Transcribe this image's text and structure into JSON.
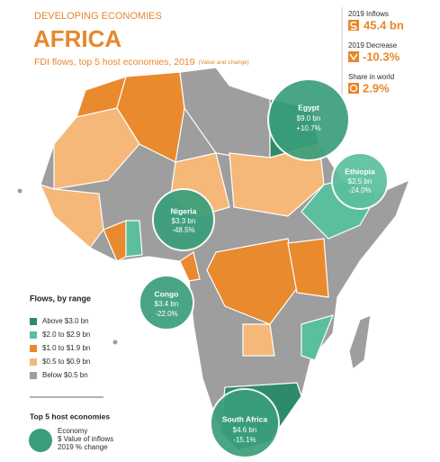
{
  "header": {
    "kicker": "DEVELOPING ECONOMIES",
    "title": "AFRICA",
    "subtitle": "FDI flows, top 5 host economies, 2019",
    "subtitle_note": "(Value and change)"
  },
  "stats": [
    {
      "label": "2019 Inflows",
      "value": "45.4 bn"
    },
    {
      "label": "2019 Decrease",
      "value": "-10.3%"
    },
    {
      "label": "Share in world",
      "value": "2.9%"
    }
  ],
  "economies": [
    {
      "name": "Egypt",
      "value": "$9.0 bn",
      "change": "+10.7%"
    },
    {
      "name": "Ethiopia",
      "value": "$2.5 bn",
      "change": "-24.0%"
    },
    {
      "name": "Nigeria",
      "value": "$3.3 bn",
      "change": "-48.5%"
    },
    {
      "name": "Congo",
      "value": "$3.4 bn",
      "change": "-22.0%"
    },
    {
      "name": "South Africa",
      "value": "$4.6 bn",
      "change": "-15.1%"
    }
  ],
  "legend": {
    "title": "Flows, by range",
    "items": [
      "Above $3.0 bn",
      "$2.0 to $2.9 bn",
      "$1.0 to $1.9 bn",
      "$0.5 to $0.9 bn",
      "Below $0.5 bn"
    ]
  },
  "key": {
    "title": "Top 5 host economies",
    "lines": [
      "Economy",
      "$ Value of inflows",
      "2019 % change"
    ]
  }
}
